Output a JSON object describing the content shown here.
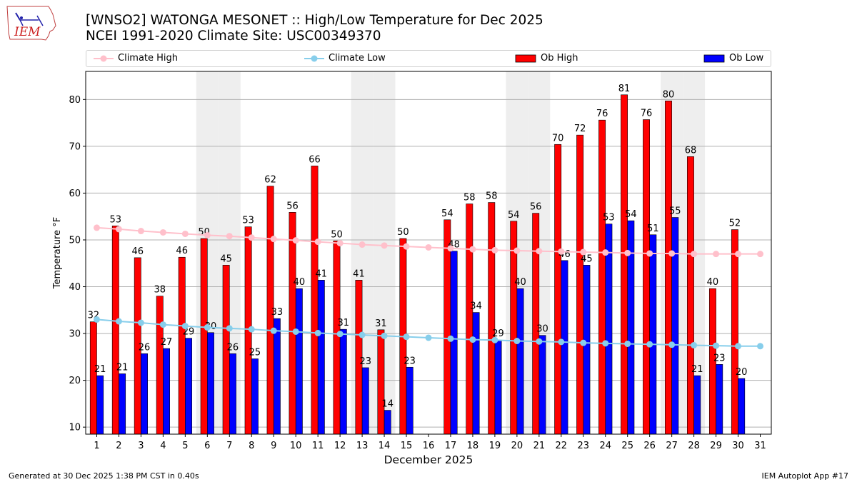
{
  "header": {
    "title_line1": "[WNSO2] WATONGA MESONET :: High/Low Temperature for Dec 2025",
    "title_line2": "NCEI 1991-2020 Climate Site: USC00349370"
  },
  "logo": {
    "text": "IEM"
  },
  "footer": {
    "left": "Generated at 30 Dec 2025 1:38 PM CST in 0.40s",
    "right": "IEM Autoplot App #17"
  },
  "colors": {
    "ob_high": "#ff0000",
    "ob_low": "#0000ff",
    "climate_high": "#ffc0cb",
    "climate_low": "#87ceeb",
    "weekend_shade": "#eeeeee"
  },
  "chart_data": {
    "type": "bar",
    "xlabel": "December 2025",
    "ylabel": "Temperature °F",
    "ylim": [
      8.5,
      86
    ],
    "yticks": [
      10,
      20,
      30,
      40,
      50,
      60,
      70,
      80
    ],
    "grid": "horizontal",
    "legend_placement": "top",
    "legend": [
      "Climate High",
      "Climate Low",
      "Ob High",
      "Ob Low"
    ],
    "categories": [
      "1",
      "2",
      "3",
      "4",
      "5",
      "6",
      "7",
      "8",
      "9",
      "10",
      "11",
      "12",
      "13",
      "14",
      "15",
      "16",
      "17",
      "18",
      "19",
      "20",
      "21",
      "22",
      "23",
      "24",
      "25",
      "26",
      "27",
      "28",
      "29",
      "30",
      "31"
    ],
    "shaded_days": [
      6,
      7,
      13,
      14,
      20,
      21,
      27,
      28
    ],
    "series": [
      {
        "name": "Ob High",
        "kind": "bar",
        "values": [
          32.5,
          53,
          46.2,
          38,
          46.3,
          50.3,
          44.6,
          52.8,
          61.5,
          55.9,
          65.8,
          49.8,
          41.4,
          30.8,
          50.3,
          null,
          54.3,
          57.7,
          58,
          54,
          55.7,
          70.4,
          72.4,
          75.6,
          81,
          75.7,
          79.7,
          67.8,
          39.6,
          52.2,
          null
        ],
        "labels": [
          "32",
          "53",
          "46",
          "38",
          "46",
          "50",
          "45",
          "53",
          "62",
          "56",
          "66",
          "50",
          "41",
          "31",
          "50",
          "",
          "54",
          "58",
          "58",
          "54",
          "56",
          "70",
          "72",
          "76",
          "81",
          "76",
          "80",
          "68",
          "40",
          "52",
          ""
        ]
      },
      {
        "name": "Ob Low",
        "kind": "bar",
        "values": [
          21,
          21.4,
          25.7,
          26.8,
          29,
          30.2,
          25.7,
          24.6,
          33.2,
          39.6,
          41.4,
          30.9,
          22.7,
          13.6,
          22.8,
          null,
          47.6,
          34.5,
          28.6,
          39.6,
          29.6,
          45.6,
          44.6,
          53.4,
          54.1,
          51.1,
          54.8,
          21,
          23.4,
          20.4,
          null
        ],
        "labels": [
          "21",
          "21",
          "26",
          "27",
          "29",
          "30",
          "26",
          "25",
          "33",
          "40",
          "41",
          "31",
          "23",
          "14",
          "23",
          "",
          "48",
          "34",
          "29",
          "40",
          "30",
          "46",
          "45",
          "53",
          "54",
          "51",
          "55",
          "21",
          "23",
          "20",
          ""
        ]
      },
      {
        "name": "Climate High",
        "kind": "line",
        "values": [
          52.6,
          52.3,
          51.9,
          51.6,
          51.3,
          51.0,
          50.8,
          50.5,
          50.2,
          49.9,
          49.6,
          49.3,
          49.0,
          48.8,
          48.6,
          48.4,
          48.2,
          48.0,
          47.8,
          47.7,
          47.6,
          47.5,
          47.4,
          47.3,
          47.2,
          47.1,
          47.1,
          47.0,
          47.0,
          47.0,
          47.0
        ]
      },
      {
        "name": "Climate Low",
        "kind": "line",
        "values": [
          33.0,
          32.6,
          32.3,
          31.9,
          31.6,
          31.3,
          31.1,
          30.9,
          30.6,
          30.4,
          30.1,
          29.9,
          29.7,
          29.5,
          29.3,
          29.1,
          28.9,
          28.7,
          28.6,
          28.4,
          28.3,
          28.2,
          28.0,
          27.9,
          27.8,
          27.7,
          27.6,
          27.5,
          27.4,
          27.3,
          27.3
        ]
      }
    ]
  }
}
